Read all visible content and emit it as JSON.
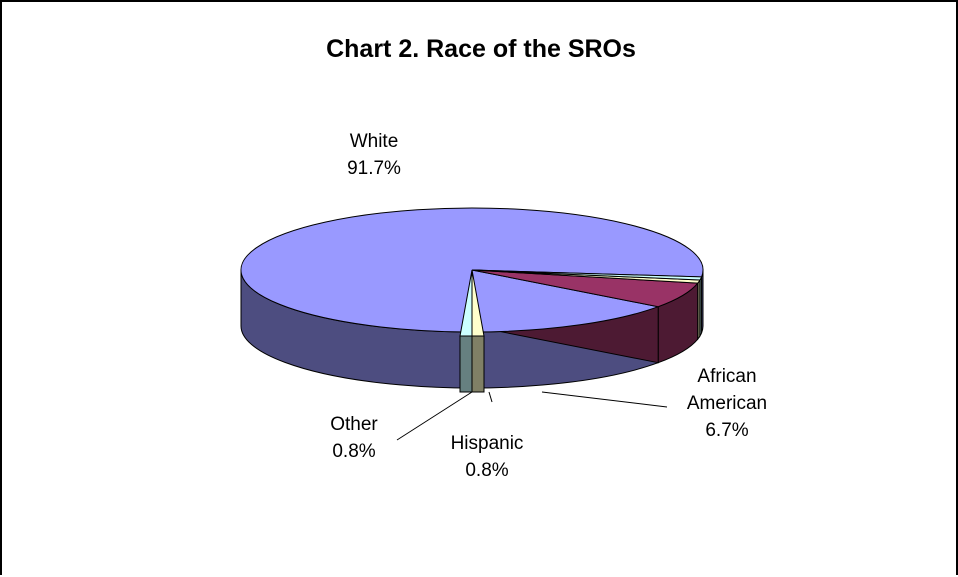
{
  "chart_data": {
    "type": "pie",
    "title": "Chart 2. Race of the SROs",
    "slices": [
      {
        "label": "White",
        "value": 91.7,
        "value_label": "91.7%",
        "color": "#9999ff",
        "side_color": "#4d4d80"
      },
      {
        "label": "African American",
        "value": 6.7,
        "value_label": "6.7%",
        "color": "#993366",
        "side_color": "#4d1a33"
      },
      {
        "label": "Hispanic",
        "value": 0.8,
        "value_label": "0.8%",
        "color": "#ffffcc",
        "side_color": "#808066"
      },
      {
        "label": "Other",
        "value": 0.8,
        "value_label": "0.8%",
        "color": "#ccffff",
        "side_color": "#668080"
      }
    ],
    "style": "3-D pie",
    "legend": "none"
  }
}
